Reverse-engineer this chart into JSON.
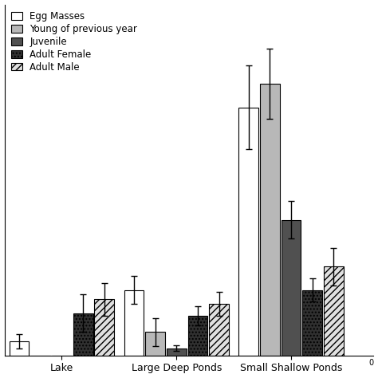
{
  "groups": [
    "Lake",
    "Large Deep Ponds",
    "Small Shallow Ponds"
  ],
  "categories": [
    "Egg Masses",
    "Young of previous year",
    "Juvenile",
    "Adult Female",
    "Adult Male"
  ],
  "values": [
    [
      3.0,
      0.0,
      0.0,
      9.0,
      12.0
    ],
    [
      14.0,
      5.0,
      1.5,
      8.5,
      11.0
    ],
    [
      53.0,
      58.0,
      29.0,
      14.0,
      19.0
    ]
  ],
  "errors": [
    [
      1.5,
      0.0,
      0.0,
      4.0,
      3.5
    ],
    [
      3.0,
      3.0,
      0.6,
      2.0,
      2.5
    ],
    [
      9.0,
      7.5,
      4.0,
      2.5,
      4.0
    ]
  ],
  "bar_width": 0.055,
  "ylim": [
    0,
    75
  ],
  "background_color": "#ffffff",
  "legend_labels": [
    "Egg Masses",
    "Young of previous year",
    "Juvenile",
    "Adult Female",
    "Adult Male"
  ],
  "xtick_fontsize": 9,
  "legend_fontsize": 8.5
}
